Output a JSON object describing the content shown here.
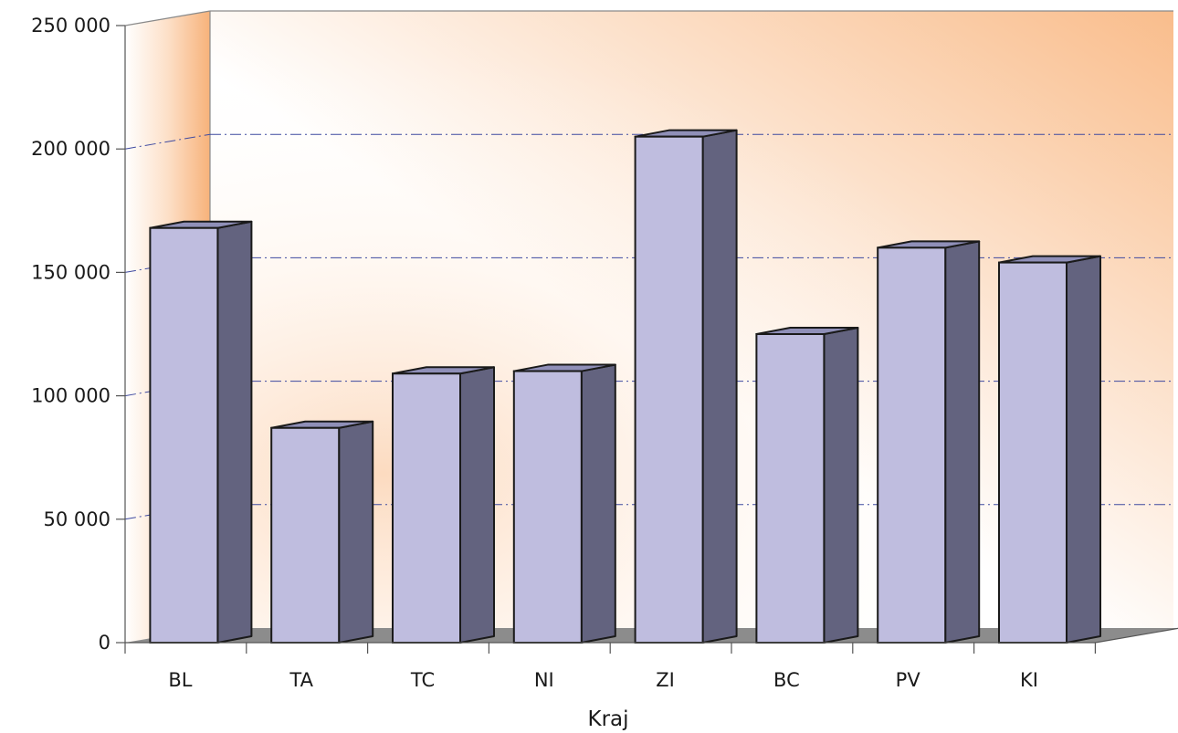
{
  "chart_data": {
    "type": "bar",
    "style": "3d",
    "title": "",
    "xlabel": "Kraj",
    "ylabel": "",
    "categories": [
      "BL",
      "TA",
      "TC",
      "NI",
      "ZI",
      "BC",
      "PV",
      "KI"
    ],
    "values": [
      168000,
      87000,
      109000,
      110000,
      205000,
      125000,
      160000,
      154000
    ],
    "ylim": [
      0,
      250000
    ],
    "yticks": [
      0,
      50000,
      100000,
      150000,
      200000,
      250000
    ],
    "ytick_labels": [
      "0",
      "50 000",
      "100 000",
      "150 000",
      "200 000",
      "250 000"
    ],
    "grid": true,
    "legend": "none",
    "colors": {
      "bar_front": "#bfbddf",
      "bar_side": "#63637f",
      "bar_top": "#8f8fb8",
      "bar_outline": "#1a1a1a",
      "wall_gradient_light": "#ffffff",
      "wall_gradient_warm": "#f9bd8c",
      "floor": "#8c8c8c",
      "gridline": "#3f4aa0"
    }
  }
}
